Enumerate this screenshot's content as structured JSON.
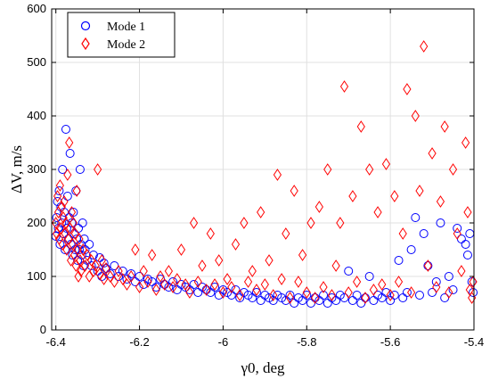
{
  "chart_data": {
    "type": "scatter",
    "title": "",
    "xlabel": "γ0, deg",
    "ylabel": "ΔV, m/s",
    "xlim": [
      -6.41,
      -5.4
    ],
    "ylim": [
      0,
      600
    ],
    "xticks": [
      -6.4,
      -6.2,
      -6,
      -5.8,
      -5.6,
      -5.4
    ],
    "xtick_labels": [
      "-6.4",
      "-6.2",
      "-6",
      "-5.8",
      "-5.6",
      "-5.4"
    ],
    "yticks": [
      0,
      100,
      200,
      300,
      400,
      500,
      600
    ],
    "ytick_labels": [
      "0",
      "100",
      "200",
      "300",
      "400",
      "500",
      "600"
    ],
    "grid": true,
    "legend_position": "top-left",
    "series": [
      {
        "name": "Mode 1",
        "marker": "circle",
        "color": "#0000ff",
        "points": [
          [
            -6.4,
            175
          ],
          [
            -6.398,
            210
          ],
          [
            -6.396,
            240
          ],
          [
            -6.394,
            190
          ],
          [
            -6.392,
            260
          ],
          [
            -6.39,
            160
          ],
          [
            -6.388,
            230
          ],
          [
            -6.386,
            200
          ],
          [
            -6.384,
            300
          ],
          [
            -6.382,
            180
          ],
          [
            -6.38,
            220
          ],
          [
            -6.378,
            150
          ],
          [
            -6.376,
            375
          ],
          [
            -6.374,
            190
          ],
          [
            -6.372,
            250
          ],
          [
            -6.37,
            170
          ],
          [
            -6.368,
            210
          ],
          [
            -6.366,
            330
          ],
          [
            -6.364,
            160
          ],
          [
            -6.362,
            200
          ],
          [
            -6.36,
            140
          ],
          [
            -6.358,
            220
          ],
          [
            -6.356,
            180
          ],
          [
            -6.354,
            150
          ],
          [
            -6.352,
            260
          ],
          [
            -6.35,
            170
          ],
          [
            -6.348,
            130
          ],
          [
            -6.346,
            190
          ],
          [
            -6.344,
            150
          ],
          [
            -6.342,
            300
          ],
          [
            -6.34,
            160
          ],
          [
            -6.338,
            140
          ],
          [
            -6.336,
            200
          ],
          [
            -6.334,
            120
          ],
          [
            -6.332,
            170
          ],
          [
            -6.33,
            150
          ],
          [
            -6.325,
            130
          ],
          [
            -6.32,
            160
          ],
          [
            -6.315,
            120
          ],
          [
            -6.31,
            140
          ],
          [
            -6.3,
            110
          ],
          [
            -6.295,
            135
          ],
          [
            -6.29,
            100
          ],
          [
            -6.285,
            125
          ],
          [
            -6.28,
            115
          ],
          [
            -6.27,
            105
          ],
          [
            -6.26,
            120
          ],
          [
            -6.25,
            100
          ],
          [
            -6.24,
            110
          ],
          [
            -6.23,
            95
          ],
          [
            -6.22,
            105
          ],
          [
            -6.21,
            90
          ],
          [
            -6.2,
            100
          ],
          [
            -6.19,
            85
          ],
          [
            -6.18,
            95
          ],
          [
            -6.17,
            90
          ],
          [
            -6.16,
            80
          ],
          [
            -6.15,
            95
          ],
          [
            -6.14,
            85
          ],
          [
            -6.13,
            80
          ],
          [
            -6.12,
            90
          ],
          [
            -6.11,
            75
          ],
          [
            -6.1,
            85
          ],
          [
            -6.09,
            80
          ],
          [
            -6.08,
            75
          ],
          [
            -6.07,
            85
          ],
          [
            -6.06,
            70
          ],
          [
            -6.05,
            80
          ],
          [
            -6.04,
            75
          ],
          [
            -6.03,
            70
          ],
          [
            -6.02,
            80
          ],
          [
            -6.01,
            65
          ],
          [
            -6.0,
            75
          ],
          [
            -5.99,
            70
          ],
          [
            -5.98,
            65
          ],
          [
            -5.97,
            75
          ],
          [
            -5.96,
            60
          ],
          [
            -5.95,
            70
          ],
          [
            -5.94,
            65
          ],
          [
            -5.93,
            60
          ],
          [
            -5.92,
            70
          ],
          [
            -5.91,
            55
          ],
          [
            -5.9,
            65
          ],
          [
            -5.89,
            60
          ],
          [
            -5.88,
            55
          ],
          [
            -5.87,
            65
          ],
          [
            -5.86,
            60
          ],
          [
            -5.85,
            55
          ],
          [
            -5.84,
            65
          ],
          [
            -5.83,
            50
          ],
          [
            -5.82,
            60
          ],
          [
            -5.81,
            55
          ],
          [
            -5.8,
            65
          ],
          [
            -5.79,
            50
          ],
          [
            -5.78,
            60
          ],
          [
            -5.77,
            55
          ],
          [
            -5.76,
            65
          ],
          [
            -5.75,
            50
          ],
          [
            -5.74,
            60
          ],
          [
            -5.73,
            55
          ],
          [
            -5.72,
            65
          ],
          [
            -5.71,
            60
          ],
          [
            -5.7,
            110
          ],
          [
            -5.69,
            55
          ],
          [
            -5.68,
            65
          ],
          [
            -5.67,
            50
          ],
          [
            -5.66,
            60
          ],
          [
            -5.65,
            100
          ],
          [
            -5.64,
            55
          ],
          [
            -5.63,
            65
          ],
          [
            -5.62,
            60
          ],
          [
            -5.61,
            70
          ],
          [
            -5.6,
            55
          ],
          [
            -5.59,
            65
          ],
          [
            -5.58,
            130
          ],
          [
            -5.57,
            60
          ],
          [
            -5.56,
            70
          ],
          [
            -5.55,
            150
          ],
          [
            -5.54,
            210
          ],
          [
            -5.53,
            65
          ],
          [
            -5.52,
            180
          ],
          [
            -5.51,
            120
          ],
          [
            -5.5,
            70
          ],
          [
            -5.49,
            90
          ],
          [
            -5.48,
            200
          ],
          [
            -5.47,
            60
          ],
          [
            -5.46,
            100
          ],
          [
            -5.45,
            75
          ],
          [
            -5.44,
            190
          ],
          [
            -5.43,
            170
          ],
          [
            -5.42,
            160
          ],
          [
            -5.415,
            140
          ],
          [
            -5.41,
            180
          ],
          [
            -5.405,
            90
          ],
          [
            -5.402,
            70
          ]
        ]
      },
      {
        "name": "Mode 2",
        "marker": "diamond",
        "color": "#ff0000",
        "points": [
          [
            -6.4,
            200
          ],
          [
            -6.398,
            180
          ],
          [
            -6.396,
            250
          ],
          [
            -6.394,
            220
          ],
          [
            -6.392,
            170
          ],
          [
            -6.39,
            270
          ],
          [
            -6.388,
            190
          ],
          [
            -6.386,
            230
          ],
          [
            -6.384,
            160
          ],
          [
            -6.382,
            210
          ],
          [
            -6.38,
            240
          ],
          [
            -6.378,
            180
          ],
          [
            -6.376,
            200
          ],
          [
            -6.374,
            150
          ],
          [
            -6.372,
            290
          ],
          [
            -6.37,
            170
          ],
          [
            -6.368,
            350
          ],
          [
            -6.366,
            190
          ],
          [
            -6.364,
            130
          ],
          [
            -6.362,
            220
          ],
          [
            -6.36,
            160
          ],
          [
            -6.358,
            200
          ],
          [
            -6.356,
            140
          ],
          [
            -6.354,
            180
          ],
          [
            -6.352,
            120
          ],
          [
            -6.35,
            260
          ],
          [
            -6.348,
            150
          ],
          [
            -6.346,
            100
          ],
          [
            -6.344,
            170
          ],
          [
            -6.342,
            130
          ],
          [
            -6.34,
            110
          ],
          [
            -6.335,
            150
          ],
          [
            -6.33,
            120
          ],
          [
            -6.325,
            140
          ],
          [
            -6.32,
            100
          ],
          [
            -6.315,
            130
          ],
          [
            -6.31,
            110
          ],
          [
            -6.305,
            120
          ],
          [
            -6.3,
            300
          ],
          [
            -6.295,
            105
          ],
          [
            -6.29,
            130
          ],
          [
            -6.285,
            95
          ],
          [
            -6.28,
            115
          ],
          [
            -6.27,
            100
          ],
          [
            -6.26,
            90
          ],
          [
            -6.25,
            110
          ],
          [
            -6.24,
            95
          ],
          [
            -6.23,
            85
          ],
          [
            -6.22,
            100
          ],
          [
            -6.21,
            150
          ],
          [
            -6.2,
            80
          ],
          [
            -6.19,
            110
          ],
          [
            -6.18,
            90
          ],
          [
            -6.17,
            140
          ],
          [
            -6.16,
            75
          ],
          [
            -6.15,
            100
          ],
          [
            -6.14,
            85
          ],
          [
            -6.13,
            110
          ],
          [
            -6.12,
            80
          ],
          [
            -6.11,
            95
          ],
          [
            -6.1,
            150
          ],
          [
            -6.09,
            85
          ],
          [
            -6.08,
            70
          ],
          [
            -6.07,
            200
          ],
          [
            -6.06,
            90
          ],
          [
            -6.05,
            120
          ],
          [
            -6.04,
            75
          ],
          [
            -6.03,
            180
          ],
          [
            -6.02,
            85
          ],
          [
            -6.01,
            130
          ],
          [
            -6.0,
            70
          ],
          [
            -5.99,
            95
          ],
          [
            -5.98,
            80
          ],
          [
            -5.97,
            160
          ],
          [
            -5.96,
            65
          ],
          [
            -5.95,
            200
          ],
          [
            -5.94,
            90
          ],
          [
            -5.93,
            110
          ],
          [
            -5.92,
            75
          ],
          [
            -5.91,
            220
          ],
          [
            -5.9,
            85
          ],
          [
            -5.89,
            130
          ],
          [
            -5.88,
            65
          ],
          [
            -5.87,
            290
          ],
          [
            -5.86,
            95
          ],
          [
            -5.85,
            180
          ],
          [
            -5.84,
            60
          ],
          [
            -5.83,
            260
          ],
          [
            -5.82,
            90
          ],
          [
            -5.81,
            140
          ],
          [
            -5.8,
            70
          ],
          [
            -5.79,
            200
          ],
          [
            -5.78,
            60
          ],
          [
            -5.77,
            230
          ],
          [
            -5.76,
            80
          ],
          [
            -5.75,
            300
          ],
          [
            -5.74,
            65
          ],
          [
            -5.73,
            120
          ],
          [
            -5.72,
            200
          ],
          [
            -5.71,
            455
          ],
          [
            -5.7,
            70
          ],
          [
            -5.69,
            250
          ],
          [
            -5.68,
            90
          ],
          [
            -5.67,
            380
          ],
          [
            -5.66,
            60
          ],
          [
            -5.65,
            300
          ],
          [
            -5.64,
            75
          ],
          [
            -5.63,
            220
          ],
          [
            -5.62,
            85
          ],
          [
            -5.61,
            310
          ],
          [
            -5.6,
            65
          ],
          [
            -5.59,
            250
          ],
          [
            -5.58,
            90
          ],
          [
            -5.57,
            180
          ],
          [
            -5.56,
            450
          ],
          [
            -5.55,
            70
          ],
          [
            -5.54,
            400
          ],
          [
            -5.53,
            260
          ],
          [
            -5.52,
            530
          ],
          [
            -5.51,
            120
          ],
          [
            -5.5,
            330
          ],
          [
            -5.49,
            80
          ],
          [
            -5.48,
            240
          ],
          [
            -5.47,
            380
          ],
          [
            -5.46,
            70
          ],
          [
            -5.45,
            300
          ],
          [
            -5.44,
            180
          ],
          [
            -5.43,
            110
          ],
          [
            -5.42,
            350
          ],
          [
            -5.415,
            220
          ],
          [
            -5.41,
            75
          ],
          [
            -5.405,
            60
          ],
          [
            -5.402,
            90
          ]
        ]
      }
    ]
  }
}
